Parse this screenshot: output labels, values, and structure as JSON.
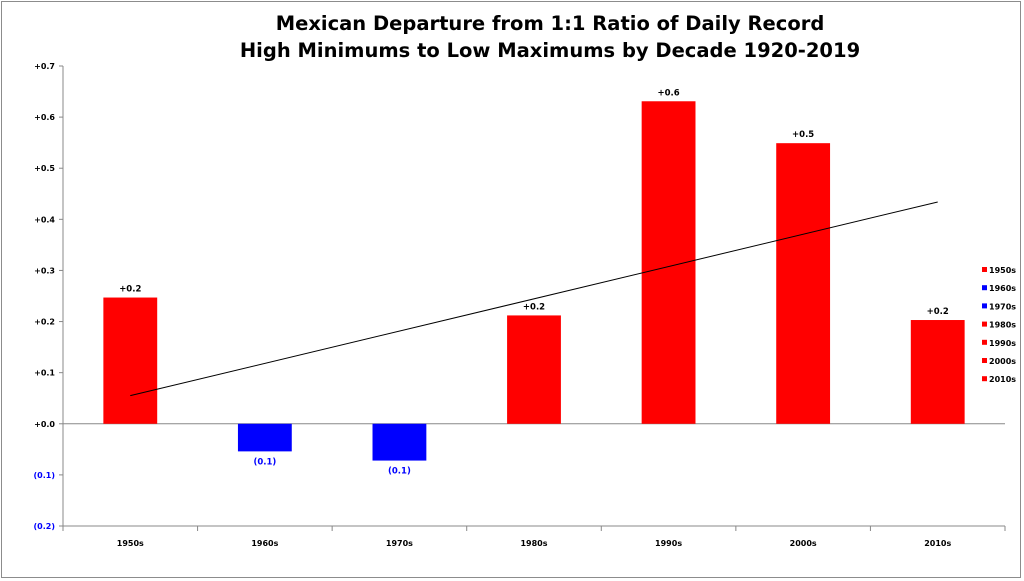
{
  "chart_data": {
    "type": "bar",
    "title_lines": [
      "Mexican Departure from 1:1 Ratio of Daily Record",
      "High Minimums to Low Maximums by Decade 1920-2019"
    ],
    "categories": [
      "1950s",
      "1960s",
      "1970s",
      "1980s",
      "1990s",
      "2000s",
      "2010s"
    ],
    "values": [
      0.247,
      -0.054,
      -0.072,
      0.212,
      0.631,
      0.549,
      0.203
    ],
    "data_labels": [
      "+0.2",
      "(0.1)",
      "(0.1)",
      "+0.2",
      "+0.6",
      "+0.5",
      "+0.2"
    ],
    "bar_colors": [
      "#ff0000",
      "#0000ff",
      "#0000ff",
      "#ff0000",
      "#ff0000",
      "#ff0000",
      "#ff0000"
    ],
    "positive_color": "#ff0000",
    "negative_color": "#0000ff",
    "ylim": [
      -0.2,
      0.7
    ],
    "y_ticks": [
      0.7,
      0.6,
      0.5,
      0.4,
      0.3,
      0.2,
      0.1,
      0.0,
      -0.1,
      -0.2
    ],
    "y_tick_labels": [
      "+0.7",
      "+0.6",
      "+0.5",
      "+0.4",
      "+0.3",
      "+0.2",
      "+0.1",
      "+0.0",
      "(0.1)",
      "(0.2)"
    ],
    "trendline": {
      "start": 0.055,
      "end": 0.434,
      "color": "#000000"
    },
    "legend": {
      "placement": "right",
      "entries": [
        "1950s",
        "1960s",
        "1970s",
        "1980s",
        "1990s",
        "2000s",
        "2010s"
      ],
      "colors": [
        "#ff0000",
        "#0000ff",
        "#0000ff",
        "#ff0000",
        "#ff0000",
        "#ff0000",
        "#ff0000"
      ]
    },
    "grid": false
  }
}
